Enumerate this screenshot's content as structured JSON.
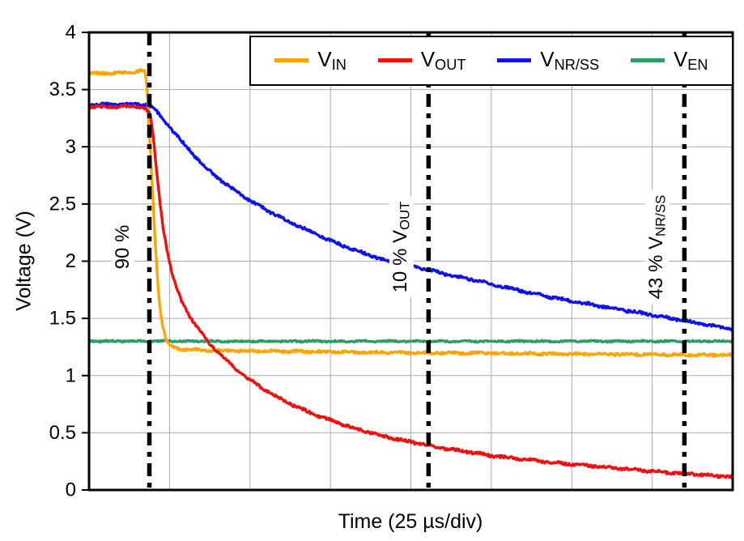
{
  "chart_data": {
    "type": "line",
    "title": "",
    "xlabel": "Time (25 µs/div)",
    "ylabel": "Voltage (V)",
    "x_range": [
      0,
      8
    ],
    "x_unit_per_div": "25 µs",
    "ylim": [
      0,
      4
    ],
    "grid": true,
    "legend_position": "top-inside",
    "colors": {
      "grid": "#ABABAB",
      "axis": "#000000",
      "marker": "#000000"
    },
    "y_ticks": [
      {
        "v": 0,
        "label": "0"
      },
      {
        "v": 0.5,
        "label": "0.5"
      },
      {
        "v": 1,
        "label": "1"
      },
      {
        "v": 1.5,
        "label": "1.5"
      },
      {
        "v": 2,
        "label": "2"
      },
      {
        "v": 2.5,
        "label": "2.5"
      },
      {
        "v": 3,
        "label": "3"
      },
      {
        "v": 3.5,
        "label": "3.5"
      },
      {
        "v": 4,
        "label": "4"
      }
    ],
    "series": [
      {
        "id": "vin",
        "label_main": "V",
        "label_sub": "IN",
        "color": "#FFA400",
        "noise": 0.012,
        "points": [
          [
            0,
            3.64
          ],
          [
            0.3,
            3.645
          ],
          [
            0.5,
            3.65
          ],
          [
            0.6,
            3.66
          ],
          [
            0.66,
            3.67
          ],
          [
            0.7,
            3.65
          ],
          [
            0.72,
            3.52
          ],
          [
            0.74,
            3.25
          ],
          [
            0.76,
            2.98
          ],
          [
            0.79,
            2.6
          ],
          [
            0.82,
            2.2
          ],
          [
            0.85,
            1.86
          ],
          [
            0.88,
            1.6
          ],
          [
            0.92,
            1.42
          ],
          [
            0.96,
            1.31
          ],
          [
            1.0,
            1.26
          ],
          [
            1.1,
            1.235
          ],
          [
            1.3,
            1.225
          ],
          [
            1.6,
            1.22
          ],
          [
            2,
            1.215
          ],
          [
            2.5,
            1.212
          ],
          [
            3,
            1.208
          ],
          [
            3.5,
            1.204
          ],
          [
            4,
            1.2
          ],
          [
            4.5,
            1.198
          ],
          [
            5,
            1.195
          ],
          [
            5.5,
            1.192
          ],
          [
            6,
            1.19
          ],
          [
            6.5,
            1.188
          ],
          [
            7,
            1.185
          ],
          [
            7.5,
            1.182
          ],
          [
            8,
            1.18
          ]
        ]
      },
      {
        "id": "vout",
        "label_main": "V",
        "label_sub": "OUT",
        "color": "#F01010",
        "noise": 0.013,
        "points": [
          [
            0,
            3.35
          ],
          [
            0.6,
            3.35
          ],
          [
            0.7,
            3.34
          ],
          [
            0.76,
            3.28
          ],
          [
            0.8,
            3.08
          ],
          [
            0.84,
            2.78
          ],
          [
            0.88,
            2.52
          ],
          [
            0.92,
            2.3
          ],
          [
            0.97,
            2.1
          ],
          [
            1.02,
            1.93
          ],
          [
            1.08,
            1.78
          ],
          [
            1.15,
            1.65
          ],
          [
            1.25,
            1.52
          ],
          [
            1.35,
            1.42
          ],
          [
            1.5,
            1.28
          ],
          [
            1.65,
            1.17
          ],
          [
            1.8,
            1.07
          ],
          [
            2,
            0.96
          ],
          [
            2.2,
            0.87
          ],
          [
            2.4,
            0.79
          ],
          [
            2.6,
            0.72
          ],
          [
            2.8,
            0.66
          ],
          [
            3,
            0.61
          ],
          [
            3.25,
            0.55
          ],
          [
            3.5,
            0.5
          ],
          [
            3.75,
            0.455
          ],
          [
            4,
            0.42
          ],
          [
            4.25,
            0.385
          ],
          [
            4.5,
            0.355
          ],
          [
            4.75,
            0.33
          ],
          [
            5,
            0.3
          ],
          [
            5.25,
            0.28
          ],
          [
            5.5,
            0.26
          ],
          [
            5.75,
            0.24
          ],
          [
            6,
            0.225
          ],
          [
            6.25,
            0.21
          ],
          [
            6.5,
            0.195
          ],
          [
            6.75,
            0.18
          ],
          [
            7,
            0.165
          ],
          [
            7.25,
            0.15
          ],
          [
            7.5,
            0.14
          ],
          [
            7.75,
            0.125
          ],
          [
            8,
            0.115
          ]
        ]
      },
      {
        "id": "vnrss",
        "label_main": "V",
        "label_sub": "NR/SS",
        "color": "#1111EE",
        "noise": 0.013,
        "points": [
          [
            0,
            3.37
          ],
          [
            0.7,
            3.37
          ],
          [
            0.78,
            3.35
          ],
          [
            0.85,
            3.3
          ],
          [
            0.95,
            3.22
          ],
          [
            1.05,
            3.13
          ],
          [
            1.15,
            3.05
          ],
          [
            1.3,
            2.93
          ],
          [
            1.45,
            2.82
          ],
          [
            1.6,
            2.73
          ],
          [
            1.8,
            2.62
          ],
          [
            2,
            2.53
          ],
          [
            2.25,
            2.43
          ],
          [
            2.5,
            2.34
          ],
          [
            2.75,
            2.26
          ],
          [
            3,
            2.18
          ],
          [
            3.25,
            2.11
          ],
          [
            3.5,
            2.05
          ],
          [
            3.75,
            1.99
          ],
          [
            4,
            1.96
          ],
          [
            4.25,
            1.92
          ],
          [
            4.5,
            1.875
          ],
          [
            4.75,
            1.84
          ],
          [
            5,
            1.8
          ],
          [
            5.25,
            1.76
          ],
          [
            5.5,
            1.72
          ],
          [
            5.75,
            1.685
          ],
          [
            6,
            1.65
          ],
          [
            6.25,
            1.62
          ],
          [
            6.5,
            1.59
          ],
          [
            6.75,
            1.56
          ],
          [
            7,
            1.53
          ],
          [
            7.25,
            1.5
          ],
          [
            7.5,
            1.465
          ],
          [
            7.75,
            1.435
          ],
          [
            8,
            1.41
          ]
        ]
      },
      {
        "id": "ven",
        "label_main": "V",
        "label_sub": "EN",
        "color": "#2E9D62",
        "noise": 0.008,
        "points": [
          [
            0,
            1.3
          ],
          [
            8,
            1.3
          ]
        ]
      }
    ],
    "markers": [
      {
        "t": 0.75,
        "label_pre": "90 %",
        "label_main": "",
        "label_sub": ""
      },
      {
        "t": 4.22,
        "label_pre": "10 % ",
        "label_main": "V",
        "label_sub": "OUT"
      },
      {
        "t": 7.4,
        "label_pre": "43 % ",
        "label_main": "V",
        "label_sub": "NR/SS"
      }
    ]
  }
}
